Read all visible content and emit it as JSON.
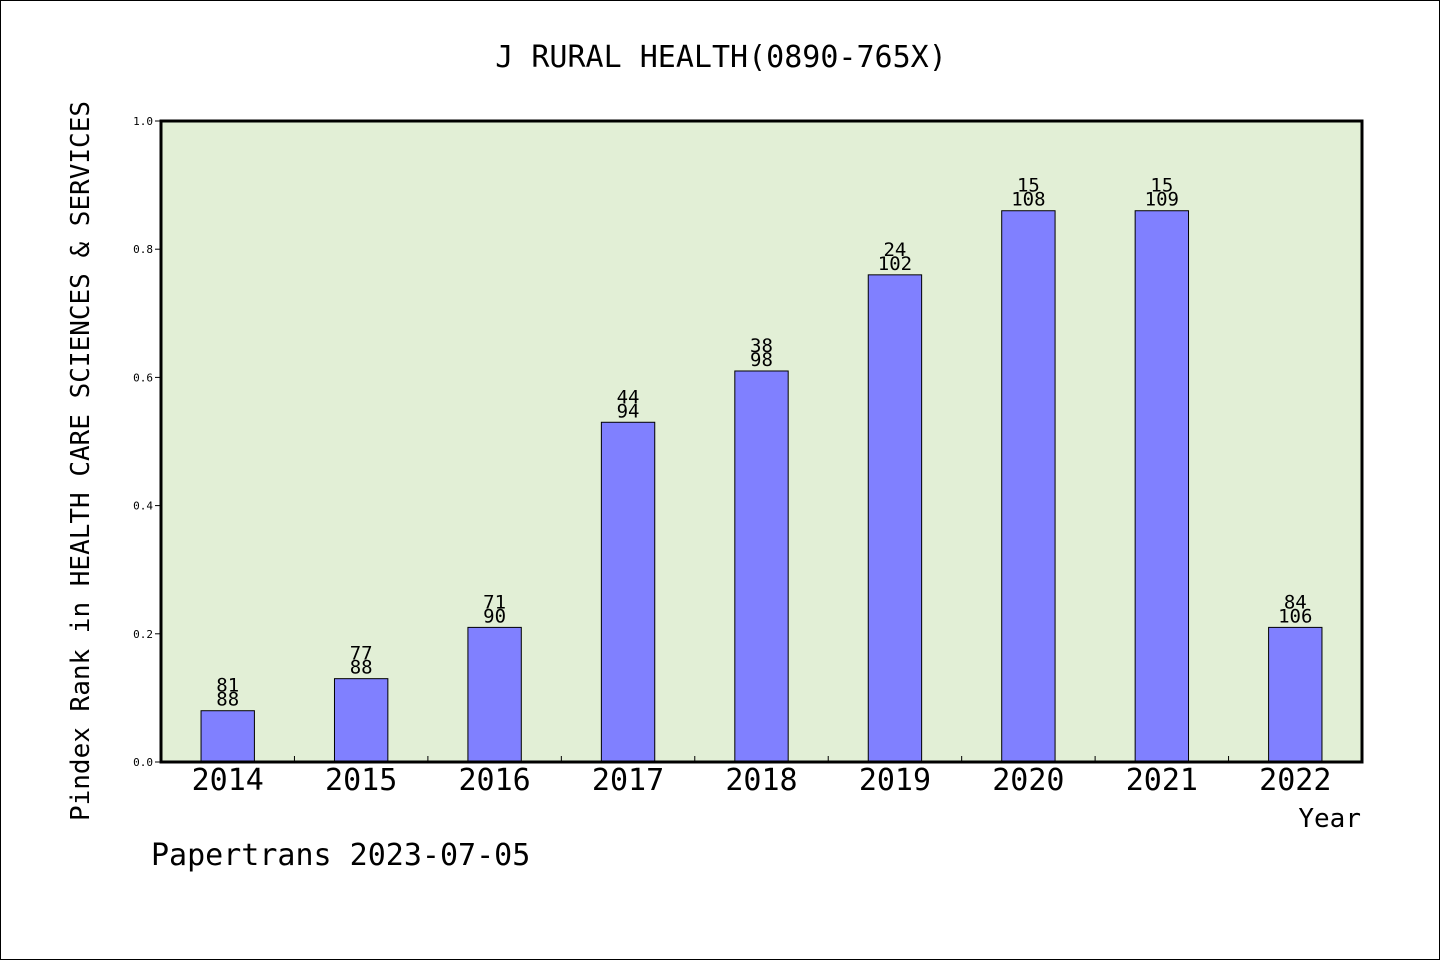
{
  "chart_data": {
    "type": "bar",
    "title": "J RURAL HEALTH(0890-765X)",
    "ylabel": "Pindex Rank in HEALTH CARE SCIENCES & SERVICES",
    "xlabel": "Year",
    "categories": [
      "2014",
      "2015",
      "2016",
      "2017",
      "2018",
      "2019",
      "2020",
      "2021",
      "2022"
    ],
    "values": [
      0.08,
      0.13,
      0.21,
      0.53,
      0.61,
      0.76,
      0.86,
      0.86,
      0.21
    ],
    "bar_labels_top": [
      "81",
      "77",
      "71",
      "44",
      "38",
      "24",
      "15",
      "15",
      "84"
    ],
    "bar_labels_bottom": [
      "88",
      "88",
      "90",
      "94",
      "98",
      "102",
      "108",
      "109",
      "106"
    ],
    "ylim": [
      0,
      1.0
    ],
    "yticks": [
      "0.0",
      "0.2",
      "0.4",
      "0.6",
      "0.8",
      "1.0"
    ],
    "grid": false,
    "colors": {
      "plot_background": "#e2efd6",
      "bar_fill": "#8080ff",
      "bar_stroke": "#000000"
    }
  },
  "footer": "Papertrans 2023-07-05"
}
